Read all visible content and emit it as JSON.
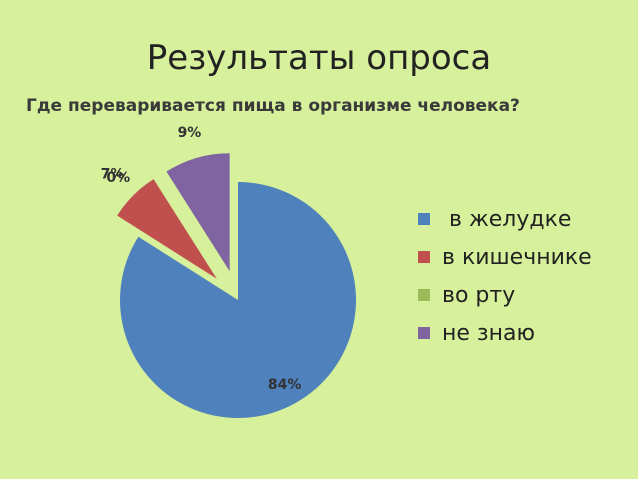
{
  "chart_data": {
    "type": "pie",
    "title": "Результаты опроса",
    "subtitle": "Где переваривается пища в организме человека?",
    "legend_position": "right",
    "slices": [
      {
        "name": " в желудке",
        "value": 84,
        "label": "84%",
        "color": "#4f81bd"
      },
      {
        "name": "в кишечнике",
        "value": 7,
        "label": "7%",
        "color": "#c0504d"
      },
      {
        "name": "во рту",
        "value": 0,
        "label": "0%",
        "color": "#9bbb59"
      },
      {
        "name": "не знаю",
        "value": 9,
        "label": "9%",
        "color": "#8064a2"
      }
    ]
  }
}
